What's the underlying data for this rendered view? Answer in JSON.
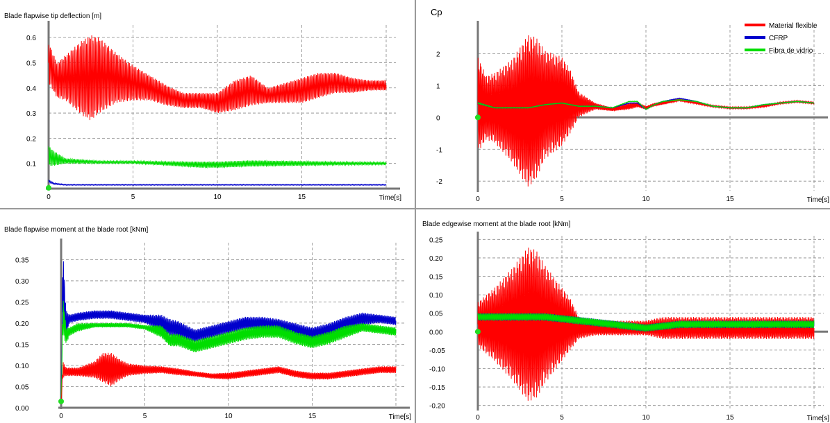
{
  "chart_data": [
    {
      "type": "line",
      "title": "Blade flapwise tip deflection [m]",
      "ylabel": "",
      "xlabel": "Time[s]",
      "xlim": [
        0,
        20
      ],
      "ylim": [
        0,
        0.65
      ],
      "x_ticks": [
        "0",
        "5",
        "10",
        "15"
      ],
      "y_ticks": [
        "0.1",
        "0.2",
        "0.3",
        "0.4",
        "0.5",
        "0.6"
      ],
      "grid": true,
      "series": [
        {
          "color": "#ff0000",
          "approx": {
            "x": [
              0,
              0.5,
              1,
              2,
              2.5,
              3,
              4,
              5,
              6,
              7,
              8,
              9,
              10,
              11,
              12,
              13,
              14,
              15,
              16,
              17,
              18,
              19,
              20
            ],
            "y": [
              0.5,
              0.43,
              0.44,
              0.44,
              0.44,
              0.45,
              0.44,
              0.42,
              0.4,
              0.37,
              0.35,
              0.35,
              0.34,
              0.37,
              0.39,
              0.37,
              0.38,
              0.39,
              0.41,
              0.42,
              0.41,
              0.41,
              0.41
            ]
          },
          "amp": [
            0.08,
            0.07,
            0.09,
            0.15,
            0.17,
            0.15,
            0.1,
            0.07,
            0.05,
            0.04,
            0.03,
            0.03,
            0.04,
            0.06,
            0.06,
            0.03,
            0.04,
            0.05,
            0.05,
            0.04,
            0.03,
            0.02,
            0.02
          ]
        },
        {
          "color": "#00dd00",
          "approx": {
            "x": [
              0,
              0.3,
              1,
              3,
              5,
              7,
              9,
              10,
              12,
              14,
              16,
              18,
              20
            ],
            "y": [
              0.13,
              0.12,
              0.11,
              0.105,
              0.105,
              0.1,
              0.095,
              0.095,
              0.1,
              0.1,
              0.1,
              0.1,
              0.1
            ]
          },
          "amp": [
            0.04,
            0.03,
            0.01,
            0.005,
            0.005,
            0.008,
            0.012,
            0.012,
            0.012,
            0.01,
            0.008,
            0.006,
            0.005
          ]
        },
        {
          "color": "#0000cc",
          "approx": {
            "x": [
              0,
              0.3,
              1,
              5,
              10,
              15,
              20
            ],
            "y": [
              0.03,
              0.02,
              0.015,
              0.015,
              0.015,
              0.015,
              0.015
            ]
          },
          "amp": [
            0.005,
            0.003,
            0.002,
            0.002,
            0.002,
            0.002,
            0.002
          ]
        }
      ]
    },
    {
      "type": "line",
      "title": "Cp",
      "xlabel": "Time[s]",
      "xlim": [
        0,
        20
      ],
      "ylim": [
        -2.3,
        2.9
      ],
      "x_ticks": [
        "0",
        "5",
        "10",
        "15"
      ],
      "y_ticks": [
        "-2",
        "-1",
        "0",
        "1",
        "2"
      ],
      "grid": true,
      "legend_position": "top-right",
      "series": [
        {
          "name": "Material flexible",
          "color": "#ff0000",
          "approx": {
            "x": [
              0,
              0.5,
              1,
              2,
              3,
              3.5,
              4,
              5,
              5.5,
              6,
              7,
              8,
              9,
              9.5,
              10,
              10.5,
              11,
              12,
              13,
              14,
              15,
              16,
              17,
              18,
              19,
              20
            ],
            "y": [
              0.4,
              0.3,
              0.3,
              0.2,
              0.2,
              0.3,
              0.4,
              0.5,
              0.5,
              0.4,
              0.35,
              0.25,
              0.35,
              0.4,
              0.3,
              0.4,
              0.45,
              0.55,
              0.45,
              0.35,
              0.3,
              0.3,
              0.35,
              0.45,
              0.5,
              0.45
            ]
          },
          "amp": [
            1.5,
            1.0,
            1.1,
            1.6,
            2.4,
            2.2,
            1.7,
            1.4,
            1.0,
            0.4,
            0.1,
            0.05,
            0.1,
            0.08,
            0.05,
            0.05,
            0.05,
            0.04,
            0.03,
            0.03,
            0.03,
            0.03,
            0.03,
            0.03,
            0.03,
            0.03
          ]
        },
        {
          "name": "CFRP",
          "color": "#0000cc",
          "approx": {
            "x": [
              0,
              1,
              2,
              3,
              4,
              5,
              6,
              7,
              8,
              9,
              9.5,
              10,
              10.5,
              11,
              12,
              13,
              14,
              15,
              16,
              17,
              18,
              19,
              20
            ],
            "y": [
              0.45,
              0.3,
              0.3,
              0.3,
              0.4,
              0.45,
              0.35,
              0.35,
              0.3,
              0.45,
              0.45,
              0.25,
              0.4,
              0.5,
              0.6,
              0.5,
              0.35,
              0.3,
              0.3,
              0.4,
              0.45,
              0.5,
              0.45
            ]
          },
          "amp": [
            0.02,
            0.01,
            0.01,
            0.01,
            0.01,
            0.01,
            0.01,
            0.01,
            0.01,
            0.01,
            0.01,
            0.01,
            0.01,
            0.01,
            0.01,
            0.01,
            0.01,
            0.01,
            0.01,
            0.01,
            0.01,
            0.01,
            0.01
          ]
        },
        {
          "name": "Fibra de vidrio",
          "color": "#00dd00",
          "approx": {
            "x": [
              0,
              1,
              2,
              3,
              4,
              5,
              6,
              7,
              8,
              9,
              9.5,
              10,
              10.5,
              11,
              12,
              13,
              14,
              15,
              16,
              17,
              18,
              19,
              20
            ],
            "y": [
              0.45,
              0.3,
              0.3,
              0.3,
              0.4,
              0.45,
              0.35,
              0.35,
              0.3,
              0.5,
              0.5,
              0.25,
              0.4,
              0.5,
              0.55,
              0.5,
              0.35,
              0.3,
              0.3,
              0.4,
              0.45,
              0.5,
              0.45
            ]
          },
          "amp": [
            0.02,
            0.01,
            0.01,
            0.01,
            0.01,
            0.01,
            0.01,
            0.01,
            0.01,
            0.01,
            0.01,
            0.01,
            0.01,
            0.01,
            0.01,
            0.01,
            0.01,
            0.01,
            0.01,
            0.01,
            0.01,
            0.01,
            0.01
          ]
        }
      ]
    },
    {
      "type": "line",
      "title": "Blade flapwise moment at the blade root [kNm]",
      "xlabel": "Time[s]",
      "xlim": [
        0,
        20
      ],
      "ylim": [
        0,
        0.39
      ],
      "x_ticks": [
        "0",
        "5",
        "10",
        "15"
      ],
      "y_ticks": [
        "0.00",
        "0.05",
        "0.10",
        "0.15",
        "0.20",
        "0.25",
        "0.30",
        "0.35"
      ],
      "grid": true,
      "series": [
        {
          "color": "#0000cc",
          "approx": {
            "x": [
              0,
              0.1,
              0.3,
              0.5,
              1,
              2,
              3,
              4,
              5,
              6,
              6.5,
              7,
              8,
              9,
              10,
              11,
              12,
              13,
              14,
              15,
              16,
              17,
              18,
              19,
              20
            ],
            "y": [
              0.01,
              0.3,
              0.2,
              0.21,
              0.215,
              0.22,
              0.22,
              0.215,
              0.21,
              0.2,
              0.19,
              0.185,
              0.17,
              0.18,
              0.19,
              0.2,
              0.2,
              0.195,
              0.185,
              0.175,
              0.185,
              0.2,
              0.21,
              0.21,
              0.205
            ]
          },
          "amp": [
            0.0,
            0.08,
            0.03,
            0.01,
            0.01,
            0.01,
            0.01,
            0.01,
            0.01,
            0.02,
            0.02,
            0.02,
            0.015,
            0.015,
            0.015,
            0.015,
            0.015,
            0.015,
            0.015,
            0.015,
            0.015,
            0.015,
            0.015,
            0.01,
            0.01
          ]
        },
        {
          "color": "#00dd00",
          "approx": {
            "x": [
              0,
              0.1,
              0.3,
              0.5,
              1,
              2,
              3,
              4,
              5,
              6,
              6.5,
              7,
              8,
              9,
              10,
              11,
              12,
              13,
              14,
              15,
              16,
              17,
              18,
              19,
              20
            ],
            "y": [
              0.01,
              0.22,
              0.17,
              0.18,
              0.19,
              0.195,
              0.195,
              0.195,
              0.19,
              0.18,
              0.16,
              0.16,
              0.145,
              0.155,
              0.165,
              0.175,
              0.18,
              0.18,
              0.165,
              0.155,
              0.165,
              0.18,
              0.19,
              0.185,
              0.18
            ]
          },
          "amp": [
            0.0,
            0.05,
            0.02,
            0.01,
            0.01,
            0.005,
            0.005,
            0.005,
            0.005,
            0.015,
            0.015,
            0.015,
            0.015,
            0.015,
            0.015,
            0.015,
            0.015,
            0.015,
            0.015,
            0.015,
            0.015,
            0.015,
            0.01,
            0.01,
            0.01
          ]
        },
        {
          "color": "#ff0000",
          "approx": {
            "x": [
              0,
              0.1,
              0.3,
              1,
              2,
              2.5,
              3,
              3.5,
              4,
              5,
              6,
              7,
              8,
              9,
              10,
              11,
              12,
              13,
              14,
              15,
              16,
              17,
              18,
              19,
              20
            ],
            "y": [
              0.01,
              0.09,
              0.085,
              0.085,
              0.09,
              0.095,
              0.09,
              0.09,
              0.09,
              0.09,
              0.09,
              0.085,
              0.08,
              0.075,
              0.075,
              0.08,
              0.085,
              0.09,
              0.08,
              0.075,
              0.075,
              0.08,
              0.085,
              0.09,
              0.09
            ]
          },
          "amp": [
            0.0,
            0.02,
            0.01,
            0.01,
            0.02,
            0.035,
            0.04,
            0.025,
            0.015,
            0.01,
            0.008,
            0.008,
            0.006,
            0.006,
            0.008,
            0.008,
            0.008,
            0.008,
            0.008,
            0.008,
            0.008,
            0.008,
            0.008,
            0.008,
            0.008
          ]
        }
      ]
    },
    {
      "type": "line",
      "title": "Blade edgewise moment at the blade root  [kNm]",
      "xlabel": "Time[s]",
      "xlim": [
        0,
        20
      ],
      "ylim": [
        -0.21,
        0.26
      ],
      "x_ticks": [
        "0",
        "5",
        "10",
        "15"
      ],
      "y_ticks": [
        "-0.20",
        "-0.15",
        "-0.10",
        "-0.05",
        "0.00",
        "0.05",
        "0.10",
        "0.15",
        "0.20",
        "0.25"
      ],
      "grid": true,
      "series": [
        {
          "color": "#ff0000",
          "approx": {
            "x": [
              0,
              0.5,
              1,
              2,
              3,
              3.5,
              4,
              5,
              5.5,
              6,
              7,
              8,
              9,
              10,
              11,
              12,
              13,
              14,
              15,
              16,
              17,
              18,
              19,
              20
            ],
            "y": [
              0.02,
              0.02,
              0.02,
              0.02,
              0.02,
              0.02,
              0.02,
              0.02,
              0.02,
              0.01,
              0.01,
              0.01,
              0.01,
              0.01,
              0.01,
              0.01,
              0.01,
              0.01,
              0.01,
              0.01,
              0.01,
              0.01,
              0.01,
              0.01
            ]
          },
          "amp": [
            0.06,
            0.08,
            0.1,
            0.15,
            0.21,
            0.2,
            0.16,
            0.1,
            0.07,
            0.03,
            0.02,
            0.02,
            0.02,
            0.02,
            0.03,
            0.03,
            0.03,
            0.03,
            0.03,
            0.03,
            0.03,
            0.03,
            0.03,
            0.03
          ]
        },
        {
          "color": "#0000cc",
          "approx": {
            "x": [
              0,
              2,
              4,
              6,
              8,
              10,
              12,
              14,
              16,
              18,
              20
            ],
            "y": [
              0.04,
              0.04,
              0.04,
              0.03,
              0.02,
              0.01,
              0.02,
              0.02,
              0.02,
              0.02,
              0.02
            ]
          },
          "amp": [
            0.01,
            0.01,
            0.01,
            0.01,
            0.01,
            0.01,
            0.01,
            0.01,
            0.01,
            0.01,
            0.01
          ]
        },
        {
          "color": "#00dd00",
          "approx": {
            "x": [
              0,
              2,
              4,
              6,
              8,
              10,
              12,
              14,
              16,
              18,
              20
            ],
            "y": [
              0.04,
              0.04,
              0.04,
              0.03,
              0.02,
              0.01,
              0.02,
              0.02,
              0.02,
              0.02,
              0.02
            ]
          },
          "amp": [
            0.01,
            0.01,
            0.01,
            0.01,
            0.01,
            0.01,
            0.01,
            0.01,
            0.01,
            0.01,
            0.01
          ]
        }
      ]
    }
  ]
}
